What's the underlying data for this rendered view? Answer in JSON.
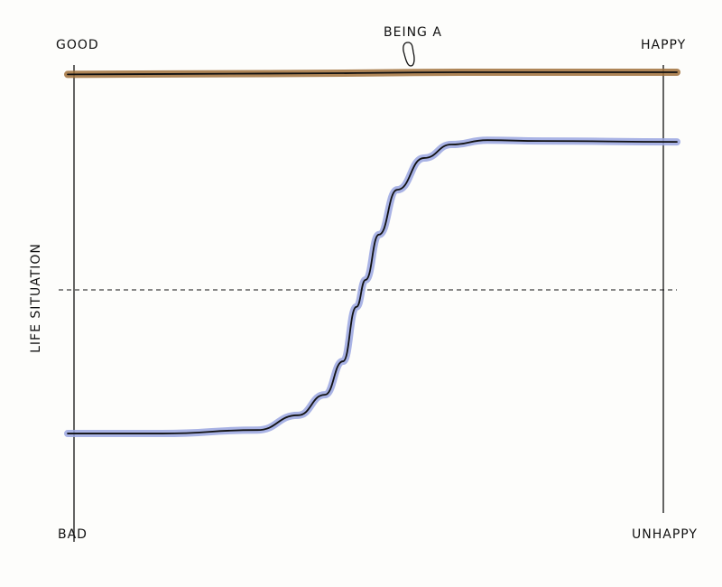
{
  "chart_data": {
    "type": "line",
    "annotation": "BEING A",
    "ylabel": "LIFE SITUATION",
    "left_top_label": "GOOD",
    "left_bottom_label": "BAD",
    "right_top_label": "HAPPY",
    "right_bottom_label": "UNHAPPY",
    "xlim": [
      0,
      100
    ],
    "ylim": [
      0,
      100
    ],
    "reference_line": 50,
    "series": [
      {
        "color": "#a0703a",
        "x": [
          0,
          33,
          66,
          100
        ],
        "values": [
          99.5,
          99.7,
          100,
          100
        ]
      },
      {
        "color": "#9aa6e0",
        "x": [
          0,
          15.6,
          31.1,
          37.8,
          42.2,
          45.2,
          47.4,
          48.9,
          51.1,
          54.1,
          58.5,
          63,
          68.9,
          77.8,
          100
        ],
        "values": [
          17,
          17,
          17.8,
          21.2,
          25.9,
          33.6,
          46.1,
          52.3,
          62.7,
          73,
          80.3,
          83.4,
          84.4,
          84.2,
          84
        ]
      }
    ]
  }
}
